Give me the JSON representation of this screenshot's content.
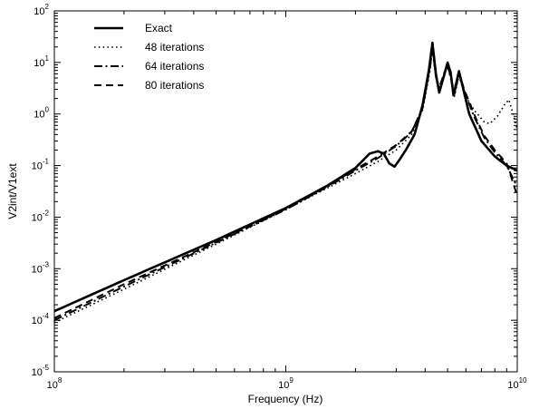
{
  "chart_data": {
    "type": "line",
    "title": "",
    "xlabel": "Frequency (Hz)",
    "ylabel": "V2int/V1ext",
    "x_scale": "log",
    "y_scale": "log",
    "xlim": [
      100000000.0,
      10000000000.0
    ],
    "ylim": [
      1e-05,
      100.0
    ],
    "grid": false,
    "legend_position": "top-left",
    "x_ticks": [
      {
        "value": 100000000.0,
        "base": "10",
        "exp": "8"
      },
      {
        "value": 1000000000.0,
        "base": "10",
        "exp": "9"
      },
      {
        "value": 10000000000.0,
        "base": "10",
        "exp": "10"
      }
    ],
    "y_ticks": [
      {
        "value": 1e-05,
        "base": "10",
        "exp": "-5"
      },
      {
        "value": 0.0001,
        "base": "10",
        "exp": "-4"
      },
      {
        "value": 0.001,
        "base": "10",
        "exp": "-3"
      },
      {
        "value": 0.01,
        "base": "10",
        "exp": "-2"
      },
      {
        "value": 0.1,
        "base": "10",
        "exp": "-1"
      },
      {
        "value": 1.0,
        "base": "10",
        "exp": "0"
      },
      {
        "value": 10.0,
        "base": "10",
        "exp": "1"
      },
      {
        "value": 100.0,
        "base": "10",
        "exp": "2"
      }
    ],
    "series": [
      {
        "name": "Exact",
        "style": "solid",
        "width": 2.6,
        "points": [
          [
            100000000.0,
            0.00015
          ],
          [
            200000000.0,
            0.0006
          ],
          [
            500000000.0,
            0.0036
          ],
          [
            1000000000.0,
            0.015
          ],
          [
            1500000000.0,
            0.04
          ],
          [
            2000000000.0,
            0.09
          ],
          [
            2300000000.0,
            0.17
          ],
          [
            2500000000.0,
            0.19
          ],
          [
            2650000000.0,
            0.17
          ],
          [
            2800000000.0,
            0.11
          ],
          [
            2950000000.0,
            0.095
          ],
          [
            3100000000.0,
            0.13
          ],
          [
            3300000000.0,
            0.2
          ],
          [
            3600000000.0,
            0.4
          ],
          [
            3900000000.0,
            1.5
          ],
          [
            4150000000.0,
            7.0
          ],
          [
            4300000000.0,
            24.0
          ],
          [
            4450000000.0,
            6.0
          ],
          [
            4600000000.0,
            2.6
          ],
          [
            4850000000.0,
            6.0
          ],
          [
            5000000000.0,
            10.0
          ],
          [
            5150000000.0,
            6.5
          ],
          [
            5300000000.0,
            2.3
          ],
          [
            5600000000.0,
            6.8
          ],
          [
            5800000000.0,
            3.5
          ],
          [
            6200000000.0,
            1.0
          ],
          [
            7000000000.0,
            0.3
          ],
          [
            8000000000.0,
            0.15
          ],
          [
            9000000000.0,
            0.1
          ],
          [
            10000000000.0,
            0.08
          ]
        ]
      },
      {
        "name": "48 iterations",
        "style": "dotted",
        "width": 1.6,
        "points": [
          [
            100000000.0,
            9e-05
          ],
          [
            200000000.0,
            0.0004
          ],
          [
            500000000.0,
            0.003
          ],
          [
            1000000000.0,
            0.014
          ],
          [
            1500000000.0,
            0.036
          ],
          [
            2000000000.0,
            0.07
          ],
          [
            2500000000.0,
            0.12
          ],
          [
            3000000000.0,
            0.2
          ],
          [
            3500000000.0,
            0.4
          ],
          [
            3900000000.0,
            1.2
          ],
          [
            4200000000.0,
            7.0
          ],
          [
            4300000000.0,
            18.0
          ],
          [
            4450000000.0,
            5.0
          ],
          [
            4600000000.0,
            3.0
          ],
          [
            4850000000.0,
            6.0
          ],
          [
            5000000000.0,
            9.0
          ],
          [
            5200000000.0,
            4.0
          ],
          [
            5350000000.0,
            2.2
          ],
          [
            5600000000.0,
            5.5
          ],
          [
            5900000000.0,
            2.5
          ],
          [
            6500000000.0,
            1.2
          ],
          [
            7200000000.0,
            0.7
          ],
          [
            7600000000.0,
            0.65
          ],
          [
            8200000000.0,
            0.9
          ],
          [
            8800000000.0,
            1.5
          ],
          [
            9200000000.0,
            1.9
          ],
          [
            9600000000.0,
            1.0
          ],
          [
            10000000000.0,
            0.5
          ]
        ]
      },
      {
        "name": "64 iterations",
        "style": "dashdot",
        "width": 2.0,
        "points": [
          [
            100000000.0,
            0.0001
          ],
          [
            200000000.0,
            0.00045
          ],
          [
            500000000.0,
            0.0032
          ],
          [
            1000000000.0,
            0.014
          ],
          [
            1500000000.0,
            0.038
          ],
          [
            2000000000.0,
            0.08
          ],
          [
            2500000000.0,
            0.14
          ],
          [
            3000000000.0,
            0.24
          ],
          [
            3500000000.0,
            0.45
          ],
          [
            3900000000.0,
            1.3
          ],
          [
            4200000000.0,
            8.0
          ],
          [
            4300000000.0,
            20.0
          ],
          [
            4450000000.0,
            5.5
          ],
          [
            4600000000.0,
            3.2
          ],
          [
            4850000000.0,
            6.5
          ],
          [
            5000000000.0,
            8.5
          ],
          [
            5200000000.0,
            4.5
          ],
          [
            5350000000.0,
            2.5
          ],
          [
            5600000000.0,
            6.0
          ],
          [
            5900000000.0,
            2.8
          ],
          [
            6500000000.0,
            0.9
          ],
          [
            7200000000.0,
            0.35
          ],
          [
            8000000000.0,
            0.18
          ],
          [
            9000000000.0,
            0.1
          ],
          [
            9700000000.0,
            0.05
          ],
          [
            10000000000.0,
            0.04
          ]
        ]
      },
      {
        "name": "80 iterations",
        "style": "dashed",
        "width": 2.0,
        "points": [
          [
            100000000.0,
            0.00011
          ],
          [
            200000000.0,
            0.0005
          ],
          [
            500000000.0,
            0.0033
          ],
          [
            1000000000.0,
            0.0145
          ],
          [
            1500000000.0,
            0.039
          ],
          [
            2000000000.0,
            0.085
          ],
          [
            2500000000.0,
            0.15
          ],
          [
            3000000000.0,
            0.25
          ],
          [
            3500000000.0,
            0.46
          ],
          [
            3900000000.0,
            1.3
          ],
          [
            4200000000.0,
            8.5
          ],
          [
            4300000000.0,
            21.0
          ],
          [
            4450000000.0,
            5.5
          ],
          [
            4600000000.0,
            3.0
          ],
          [
            4850000000.0,
            6.5
          ],
          [
            5000000000.0,
            9.0
          ],
          [
            5200000000.0,
            4.5
          ],
          [
            5350000000.0,
            2.4
          ],
          [
            5600000000.0,
            6.3
          ],
          [
            5900000000.0,
            3.0
          ],
          [
            6500000000.0,
            1.0
          ],
          [
            7200000000.0,
            0.38
          ],
          [
            8000000000.0,
            0.2
          ],
          [
            9000000000.0,
            0.11
          ],
          [
            9700000000.0,
            0.04
          ],
          [
            10000000000.0,
            0.025
          ]
        ]
      }
    ]
  }
}
